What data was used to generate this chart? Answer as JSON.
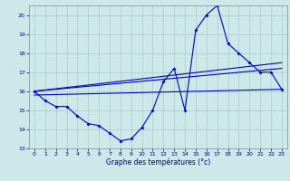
{
  "xlabel": "Graphe des températures (°c)",
  "background_color": "#cce8e8",
  "line_color": "#0000cc",
  "grid_color": "#aacccc",
  "ylim": [
    13,
    20.5
  ],
  "xlim": [
    -0.5,
    23.5
  ],
  "yticks": [
    13,
    14,
    15,
    16,
    17,
    18,
    19,
    20
  ],
  "xticks": [
    0,
    1,
    2,
    3,
    4,
    5,
    6,
    7,
    8,
    9,
    10,
    11,
    12,
    13,
    14,
    15,
    16,
    17,
    18,
    19,
    20,
    21,
    22,
    23
  ],
  "series_main": {
    "x": [
      0,
      1,
      2,
      3,
      4,
      5,
      6,
      7,
      8,
      9,
      10,
      11,
      12,
      13,
      14,
      15,
      16,
      17,
      18,
      19,
      20,
      21,
      22,
      23
    ],
    "y": [
      16.0,
      15.5,
      15.2,
      15.2,
      14.7,
      14.3,
      14.2,
      13.8,
      13.4,
      13.5,
      14.1,
      15.0,
      16.5,
      17.2,
      15.0,
      19.2,
      20.0,
      20.5,
      18.5,
      18.0,
      17.5,
      17.0,
      17.0,
      16.1
    ]
  },
  "series_reg1": {
    "x": [
      0,
      23
    ],
    "y": [
      16.0,
      17.2
    ]
  },
  "series_reg2": {
    "x": [
      0,
      23
    ],
    "y": [
      16.0,
      17.5
    ]
  },
  "series_reg3": {
    "x": [
      0,
      23
    ],
    "y": [
      15.8,
      16.1
    ]
  }
}
